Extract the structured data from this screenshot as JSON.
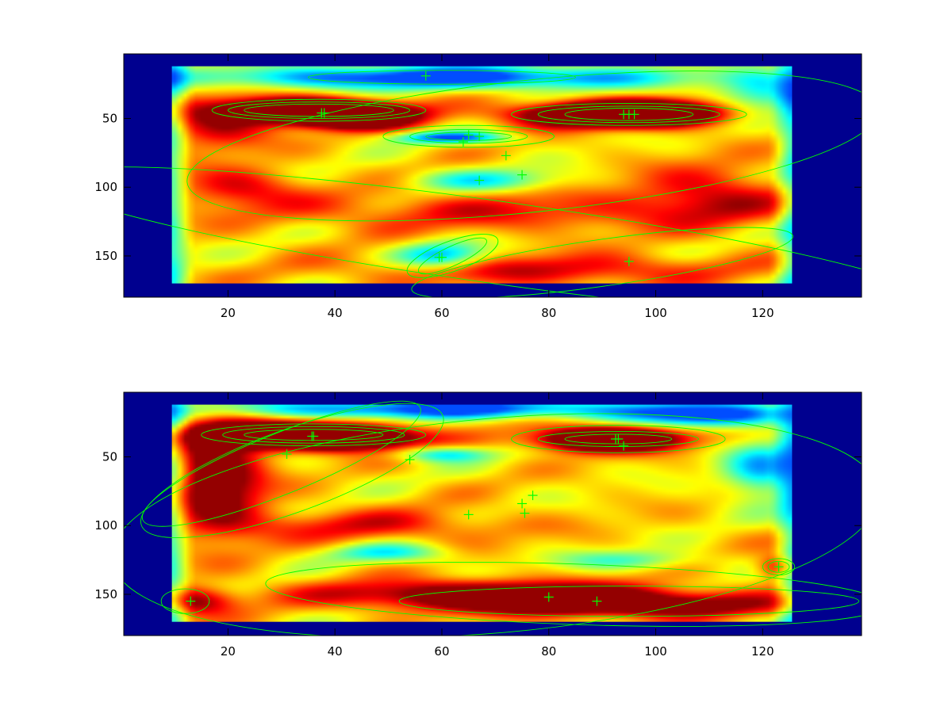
{
  "chart_data": [
    {
      "type": "heatmap",
      "colormap": "jet",
      "background_color": "#00008f",
      "overlay_color": "#00ff00",
      "xlim": [
        0.5,
        138.5
      ],
      "ylim_reversed": [
        3,
        180
      ],
      "data_extent": {
        "x": [
          9.5,
          125.5
        ],
        "y": [
          12,
          170
        ]
      },
      "xticks": [
        20,
        40,
        60,
        80,
        100,
        120
      ],
      "yticks": [
        50,
        100,
        150
      ],
      "hotspots": [
        {
          "x": 33,
          "y": 44,
          "sx": 9,
          "sy": 6,
          "w": 0.75
        },
        {
          "x": 44,
          "y": 48,
          "sx": 8,
          "sy": 6,
          "w": 0.8
        },
        {
          "x": 90,
          "y": 47,
          "sx": 11,
          "sy": 6,
          "w": 0.85
        },
        {
          "x": 100,
          "y": 46,
          "sx": 8,
          "sy": 6,
          "w": 0.55
        },
        {
          "x": 18,
          "y": 55,
          "sx": 7,
          "sy": 12,
          "w": 0.3
        },
        {
          "x": 70,
          "y": 118,
          "sx": 30,
          "sy": 10,
          "w": 0.2
        },
        {
          "x": 80,
          "y": 160,
          "sx": 25,
          "sy": 8,
          "w": 0.25
        },
        {
          "x": 22,
          "y": 100,
          "sx": 8,
          "sy": 10,
          "w": 0.25
        },
        {
          "x": 110,
          "y": 105,
          "sx": 10,
          "sy": 15,
          "w": 0.25
        }
      ],
      "coolspots": [
        {
          "x": 60,
          "y": 20,
          "sx": 30,
          "sy": 6,
          "w": 0.55
        },
        {
          "x": 62,
          "y": 64,
          "sx": 7,
          "sy": 3,
          "w": 0.45
        },
        {
          "x": 60,
          "y": 150,
          "sx": 6,
          "sy": 7,
          "w": 0.4
        },
        {
          "x": 68,
          "y": 95,
          "sx": 10,
          "sy": 6,
          "w": 0.25
        },
        {
          "x": 120,
          "y": 30,
          "sx": 6,
          "sy": 10,
          "w": 0.3
        }
      ],
      "ellipses": [
        {
          "cx": 37,
          "cy": 44,
          "rx": 20,
          "ry": 8,
          "rot": 0
        },
        {
          "cx": 37,
          "cy": 44,
          "rx": 17,
          "ry": 6,
          "rot": 0
        },
        {
          "cx": 37,
          "cy": 44,
          "rx": 14,
          "ry": 4.5,
          "rot": 0
        },
        {
          "cx": 95,
          "cy": 47,
          "rx": 22,
          "ry": 8,
          "rot": 0
        },
        {
          "cx": 95,
          "cy": 47,
          "rx": 17,
          "ry": 6,
          "rot": 0
        },
        {
          "cx": 95,
          "cy": 47,
          "rx": 12,
          "ry": 4.5,
          "rot": 0
        },
        {
          "cx": 65,
          "cy": 63,
          "rx": 16,
          "ry": 8,
          "rot": 0
        },
        {
          "cx": 65,
          "cy": 63,
          "rx": 11,
          "ry": 5,
          "rot": 0
        },
        {
          "cx": 65,
          "cy": 63,
          "rx": 8,
          "ry": 3,
          "rot": 0
        },
        {
          "cx": 60,
          "cy": 20,
          "rx": 25,
          "ry": 5,
          "rot": 0
        },
        {
          "cx": 77,
          "cy": 70,
          "rx": 65,
          "ry": 48,
          "rot": -6
        },
        {
          "cx": 62,
          "cy": 150,
          "rx": 9,
          "ry": 11,
          "rot": -20
        },
        {
          "cx": 62,
          "cy": 150,
          "rx": 7,
          "ry": 7,
          "rot": -25
        },
        {
          "cx": 90,
          "cy": 155,
          "rx": 36,
          "ry": 17,
          "rot": -8
        },
        {
          "cx": 70,
          "cy": 140,
          "rx": 85,
          "ry": 30,
          "rot": 8
        }
      ],
      "markers": [
        {
          "x": 57,
          "y": 19
        },
        {
          "x": 38,
          "y": 46
        },
        {
          "x": 37.5,
          "y": 46
        },
        {
          "x": 94,
          "y": 47
        },
        {
          "x": 95,
          "y": 47
        },
        {
          "x": 96,
          "y": 47
        },
        {
          "x": 65,
          "y": 62
        },
        {
          "x": 67,
          "y": 63
        },
        {
          "x": 64,
          "y": 67
        },
        {
          "x": 72,
          "y": 77
        },
        {
          "x": 75,
          "y": 91
        },
        {
          "x": 67,
          "y": 95
        },
        {
          "x": 60,
          "y": 151
        },
        {
          "x": 59.5,
          "y": 151
        },
        {
          "x": 95,
          "y": 154
        }
      ]
    },
    {
      "type": "heatmap",
      "colormap": "jet",
      "background_color": "#00008f",
      "overlay_color": "#00ff00",
      "xlim": [
        0.5,
        138.5
      ],
      "ylim_reversed": [
        3,
        180
      ],
      "data_extent": {
        "x": [
          9.5,
          125.5
        ],
        "y": [
          12,
          170
        ]
      },
      "xticks": [
        20,
        40,
        60,
        80,
        100,
        120
      ],
      "yticks": [
        50,
        100,
        150
      ],
      "hotspots": [
        {
          "x": 28,
          "y": 34,
          "sx": 10,
          "sy": 6,
          "w": 0.75
        },
        {
          "x": 42,
          "y": 36,
          "sx": 9,
          "sy": 6,
          "w": 0.8
        },
        {
          "x": 91,
          "y": 37,
          "sx": 9,
          "sy": 6,
          "w": 0.85
        },
        {
          "x": 18,
          "y": 65,
          "sx": 6,
          "sy": 28,
          "w": 0.45
        },
        {
          "x": 70,
          "y": 150,
          "sx": 22,
          "sy": 7,
          "w": 0.5
        },
        {
          "x": 95,
          "y": 158,
          "sx": 20,
          "sy": 6,
          "w": 0.45
        },
        {
          "x": 14,
          "y": 155,
          "sx": 5,
          "sy": 7,
          "w": 0.35
        },
        {
          "x": 123,
          "y": 130,
          "sx": 3,
          "sy": 6,
          "w": 0.3
        },
        {
          "x": 45,
          "y": 100,
          "sx": 20,
          "sy": 8,
          "w": 0.2
        }
      ],
      "coolspots": [
        {
          "x": 60,
          "y": 15,
          "sx": 30,
          "sy": 5,
          "w": 0.5
        },
        {
          "x": 110,
          "y": 20,
          "sx": 10,
          "sy": 6,
          "w": 0.5
        },
        {
          "x": 120,
          "y": 60,
          "sx": 5,
          "sy": 15,
          "w": 0.35
        },
        {
          "x": 60,
          "y": 48,
          "sx": 6,
          "sy": 4,
          "w": 0.3
        },
        {
          "x": 50,
          "y": 120,
          "sx": 8,
          "sy": 5,
          "w": 0.25
        },
        {
          "x": 95,
          "y": 125,
          "sx": 10,
          "sy": 5,
          "w": 0.2
        }
      ],
      "ellipses": [
        {
          "cx": 36,
          "cy": 34,
          "rx": 21,
          "ry": 8,
          "rot": 0
        },
        {
          "cx": 36,
          "cy": 34,
          "rx": 17,
          "ry": 6,
          "rot": 0
        },
        {
          "cx": 36,
          "cy": 34,
          "rx": 13,
          "ry": 4,
          "rot": 0
        },
        {
          "cx": 93,
          "cy": 37,
          "rx": 20,
          "ry": 10,
          "rot": 0
        },
        {
          "cx": 93,
          "cy": 37,
          "rx": 15,
          "ry": 5.5,
          "rot": 0
        },
        {
          "cx": 93,
          "cy": 37,
          "rx": 10,
          "ry": 3.5,
          "rot": 0
        },
        {
          "cx": 30,
          "cy": 55,
          "rx": 28,
          "ry": 22,
          "rot": -22
        },
        {
          "cx": 32,
          "cy": 60,
          "rx": 30,
          "ry": 30,
          "rot": -20
        },
        {
          "cx": 12,
          "cy": 155,
          "rx": 4.5,
          "ry": 9,
          "rot": 0
        },
        {
          "cx": 123,
          "cy": 130,
          "rx": 3,
          "ry": 6,
          "rot": 0
        },
        {
          "cx": 123,
          "cy": 130,
          "rx": 2,
          "ry": 4,
          "rot": 0
        },
        {
          "cx": 95,
          "cy": 155,
          "rx": 43,
          "ry": 11,
          "rot": 0
        },
        {
          "cx": 85,
          "cy": 150,
          "rx": 58,
          "ry": 22,
          "rot": 2
        },
        {
          "cx": 70,
          "cy": 100,
          "rx": 72,
          "ry": 78,
          "rot": -5
        }
      ],
      "markers": [
        {
          "x": 36,
          "y": 35
        },
        {
          "x": 35.7,
          "y": 35
        },
        {
          "x": 31,
          "y": 48
        },
        {
          "x": 54,
          "y": 52
        },
        {
          "x": 92.5,
          "y": 37
        },
        {
          "x": 93,
          "y": 37
        },
        {
          "x": 94,
          "y": 42
        },
        {
          "x": 77,
          "y": 78
        },
        {
          "x": 75,
          "y": 84
        },
        {
          "x": 75.5,
          "y": 91
        },
        {
          "x": 65,
          "y": 92
        },
        {
          "x": 80,
          "y": 152
        },
        {
          "x": 89,
          "y": 155
        },
        {
          "x": 123,
          "y": 130
        },
        {
          "x": 13,
          "y": 155
        }
      ]
    }
  ]
}
